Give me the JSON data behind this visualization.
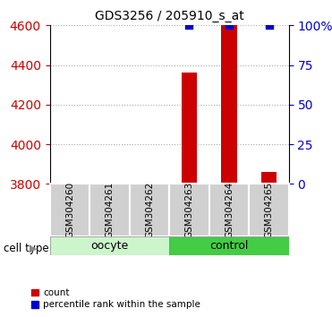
{
  "title": "GDS3256 / 205910_s_at",
  "samples": [
    "GSM304260",
    "GSM304261",
    "GSM304262",
    "GSM304263",
    "GSM304264",
    "GSM304265"
  ],
  "cell_types": [
    "oocyte",
    "oocyte",
    "oocyte",
    "control",
    "control",
    "control"
  ],
  "count_values": [
    3800,
    3800,
    3800,
    4362,
    4600,
    3862
  ],
  "percentile_values": [
    null,
    null,
    null,
    100,
    100,
    100
  ],
  "ylim_left": [
    3800,
    4600
  ],
  "ylim_right": [
    0,
    100
  ],
  "yticks_left": [
    3800,
    4000,
    4200,
    4400,
    4600
  ],
  "yticks_right": [
    0,
    25,
    50,
    75,
    100
  ],
  "ytick_labels_right": [
    "0",
    "25",
    "50",
    "75",
    "100%"
  ],
  "bar_color": "#cc0000",
  "dot_color": "#0000cc",
  "cell_type_bg_oocyte": "#ccf5cc",
  "cell_type_bg_control": "#44cc44",
  "sample_bg": "#d0d0d0",
  "grid_color": "#aaaaaa",
  "left_tick_color": "#cc0000",
  "right_tick_color": "#0000cc",
  "bar_width": 0.4,
  "dot_size": 40
}
